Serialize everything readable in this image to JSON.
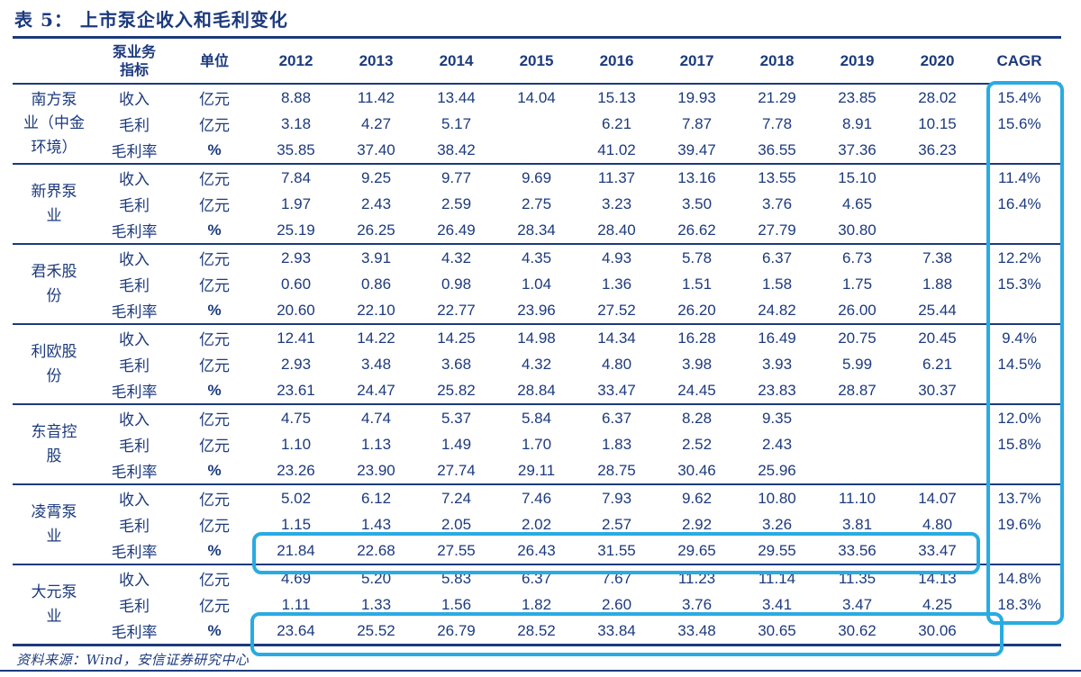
{
  "title": "表 5： 上市泵企收入和毛利变化",
  "source_note": "资料来源：Wind，安信证券研究中心",
  "colors": {
    "text_navy": "#1c3a7d",
    "highlight_cyan": "#29abe2"
  },
  "header": {
    "indicator_label": "泵业务\n指标",
    "unit_label": "单位",
    "years": [
      "2012",
      "2013",
      "2014",
      "2015",
      "2016",
      "2017",
      "2018",
      "2019",
      "2020"
    ],
    "cagr_label": "CAGR"
  },
  "companies": [
    {
      "name": "南方泵业（中金环境）",
      "name_display": "南方泵\n业（中金\n环境）",
      "rows": [
        {
          "indicator": "收入",
          "unit": "亿元",
          "values": [
            "8.88",
            "11.42",
            "13.44",
            "14.04",
            "15.13",
            "19.93",
            "21.29",
            "23.85",
            "28.02"
          ],
          "cagr": "15.4%"
        },
        {
          "indicator": "毛利",
          "unit": "亿元",
          "values": [
            "3.18",
            "4.27",
            "5.17",
            "",
            "6.21",
            "7.87",
            "7.78",
            "8.91",
            "10.15"
          ],
          "cagr": "15.6%"
        },
        {
          "indicator": "毛利率",
          "unit": "%",
          "values": [
            "35.85",
            "37.40",
            "38.42",
            "",
            "41.02",
            "39.47",
            "36.55",
            "37.36",
            "36.23"
          ],
          "cagr": ""
        }
      ]
    },
    {
      "name": "新界泵业",
      "name_display": "新界泵\n业",
      "rows": [
        {
          "indicator": "收入",
          "unit": "亿元",
          "values": [
            "7.84",
            "9.25",
            "9.77",
            "9.69",
            "11.37",
            "13.16",
            "13.55",
            "15.10",
            ""
          ],
          "cagr": "11.4%"
        },
        {
          "indicator": "毛利",
          "unit": "亿元",
          "values": [
            "1.97",
            "2.43",
            "2.59",
            "2.75",
            "3.23",
            "3.50",
            "3.76",
            "4.65",
            ""
          ],
          "cagr": "16.4%"
        },
        {
          "indicator": "毛利率",
          "unit": "%",
          "values": [
            "25.19",
            "26.25",
            "26.49",
            "28.34",
            "28.40",
            "26.62",
            "27.79",
            "30.80",
            ""
          ],
          "cagr": ""
        }
      ]
    },
    {
      "name": "君禾股份",
      "name_display": "君禾股\n份",
      "rows": [
        {
          "indicator": "收入",
          "unit": "亿元",
          "values": [
            "2.93",
            "3.91",
            "4.32",
            "4.35",
            "4.93",
            "5.78",
            "6.37",
            "6.73",
            "7.38"
          ],
          "cagr": "12.2%"
        },
        {
          "indicator": "毛利",
          "unit": "亿元",
          "values": [
            "0.60",
            "0.86",
            "0.98",
            "1.04",
            "1.36",
            "1.51",
            "1.58",
            "1.75",
            "1.88"
          ],
          "cagr": "15.3%"
        },
        {
          "indicator": "毛利率",
          "unit": "%",
          "values": [
            "20.60",
            "22.10",
            "22.77",
            "23.96",
            "27.52",
            "26.20",
            "24.82",
            "26.00",
            "25.44"
          ],
          "cagr": ""
        }
      ]
    },
    {
      "name": "利欧股份",
      "name_display": "利欧股\n份",
      "rows": [
        {
          "indicator": "收入",
          "unit": "亿元",
          "values": [
            "12.41",
            "14.22",
            "14.25",
            "14.98",
            "14.34",
            "16.28",
            "16.49",
            "20.75",
            "20.45"
          ],
          "cagr": "9.4%"
        },
        {
          "indicator": "毛利",
          "unit": "亿元",
          "values": [
            "2.93",
            "3.48",
            "3.68",
            "4.32",
            "4.80",
            "3.98",
            "3.93",
            "5.99",
            "6.21"
          ],
          "cagr": "14.5%"
        },
        {
          "indicator": "毛利率",
          "unit": "%",
          "values": [
            "23.61",
            "24.47",
            "25.82",
            "28.84",
            "33.47",
            "24.45",
            "23.83",
            "28.87",
            "30.37"
          ],
          "cagr": ""
        }
      ]
    },
    {
      "name": "东音控股",
      "name_display": "东音控\n股",
      "rows": [
        {
          "indicator": "收入",
          "unit": "亿元",
          "values": [
            "4.75",
            "4.74",
            "5.37",
            "5.84",
            "6.37",
            "8.28",
            "9.35",
            "",
            ""
          ],
          "cagr": "12.0%"
        },
        {
          "indicator": "毛利",
          "unit": "亿元",
          "values": [
            "1.10",
            "1.13",
            "1.49",
            "1.70",
            "1.83",
            "2.52",
            "2.43",
            "",
            ""
          ],
          "cagr": "15.8%"
        },
        {
          "indicator": "毛利率",
          "unit": "%",
          "values": [
            "23.26",
            "23.90",
            "27.74",
            "29.11",
            "28.75",
            "30.46",
            "25.96",
            "",
            ""
          ],
          "cagr": ""
        }
      ]
    },
    {
      "name": "凌霄泵业",
      "name_display": "凌霄泵\n业",
      "rows": [
        {
          "indicator": "收入",
          "unit": "亿元",
          "values": [
            "5.02",
            "6.12",
            "7.24",
            "7.46",
            "7.93",
            "9.62",
            "10.80",
            "11.10",
            "14.07"
          ],
          "cagr": "13.7%"
        },
        {
          "indicator": "毛利",
          "unit": "亿元",
          "values": [
            "1.15",
            "1.43",
            "2.05",
            "2.02",
            "2.57",
            "2.92",
            "3.26",
            "3.81",
            "4.80"
          ],
          "cagr": "19.6%"
        },
        {
          "indicator": "毛利率",
          "unit": "%",
          "values": [
            "21.84",
            "22.68",
            "27.55",
            "26.43",
            "31.55",
            "29.65",
            "29.55",
            "33.56",
            "33.47"
          ],
          "cagr": ""
        }
      ]
    },
    {
      "name": "大元泵业",
      "name_display": "大元泵\n业",
      "rows": [
        {
          "indicator": "收入",
          "unit": "亿元",
          "values": [
            "4.69",
            "5.20",
            "5.83",
            "6.37",
            "7.67",
            "11.23",
            "11.14",
            "11.35",
            "14.13"
          ],
          "cagr": "14.8%"
        },
        {
          "indicator": "毛利",
          "unit": "亿元",
          "values": [
            "1.11",
            "1.33",
            "1.56",
            "1.82",
            "2.60",
            "3.76",
            "3.41",
            "3.47",
            "4.25"
          ],
          "cagr": "18.3%"
        },
        {
          "indicator": "毛利率",
          "unit": "%",
          "values": [
            "23.64",
            "25.52",
            "26.79",
            "28.52",
            "33.84",
            "33.48",
            "30.65",
            "30.62",
            "30.06"
          ],
          "cagr": ""
        }
      ]
    }
  ]
}
